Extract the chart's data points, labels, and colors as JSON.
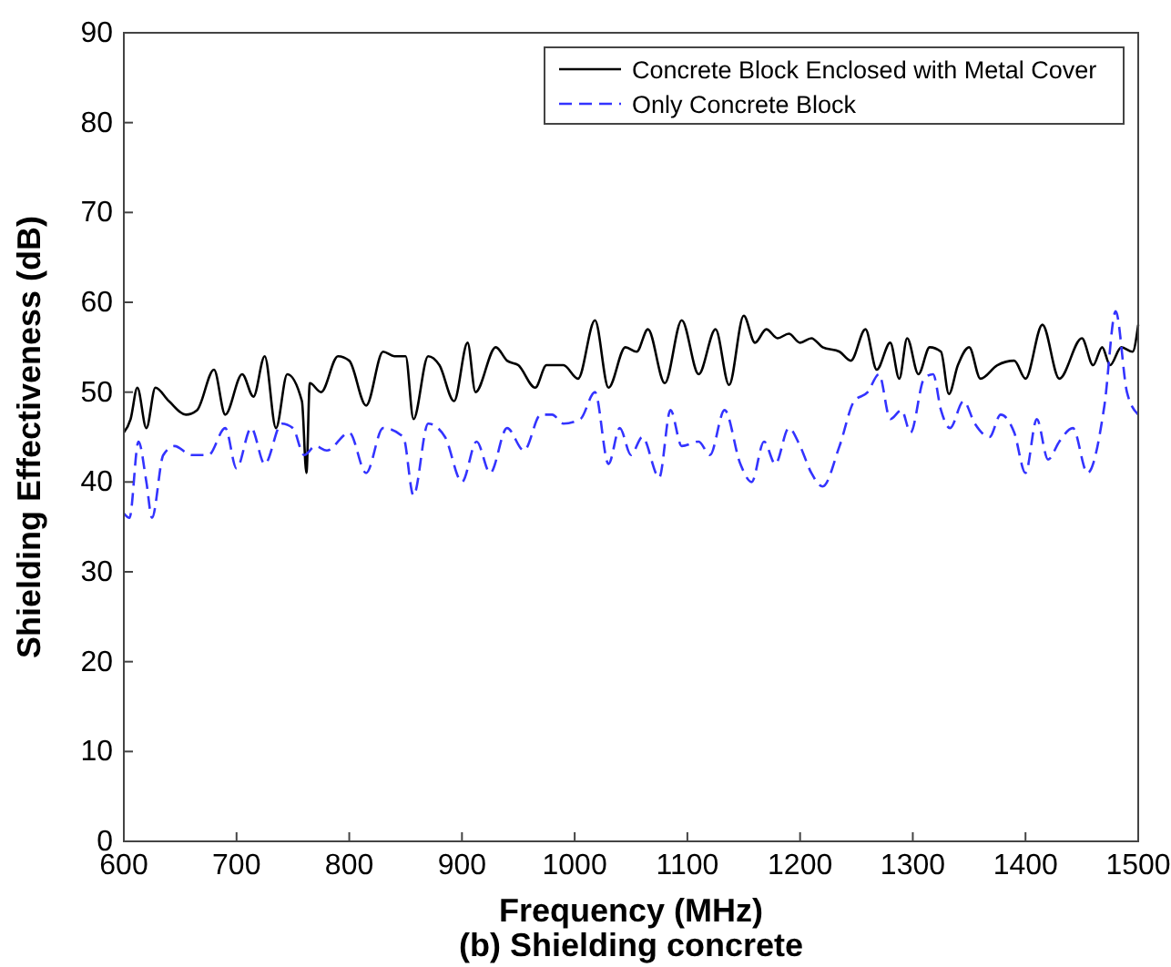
{
  "chart_data": {
    "type": "line",
    "title": "(b) Shielding concrete",
    "xlabel": "Frequency (MHz)",
    "ylabel": "Shielding Effectiveness (dB)",
    "xlim": [
      600,
      1500
    ],
    "xticks": [
      600,
      700,
      800,
      900,
      1000,
      1100,
      1200,
      1300,
      1400,
      1500
    ],
    "ylim": [
      0,
      90
    ],
    "yticks": [
      0,
      10,
      20,
      30,
      40,
      50,
      60,
      70,
      80,
      90
    ],
    "legend": "top right",
    "grid": false,
    "series": [
      {
        "name": "Concrete Block Enclosed with Metal Cover",
        "color": "#000000",
        "line_style": "solid",
        "x": [
          600,
          606,
          612,
          620,
          628,
          640,
          655,
          665,
          680,
          690,
          705,
          715,
          725,
          735,
          745,
          758,
          762,
          765,
          775,
          790,
          800,
          815,
          830,
          840,
          850,
          857,
          870,
          880,
          893,
          905,
          912,
          930,
          940,
          950,
          965,
          975,
          990,
          1003,
          1018,
          1030,
          1045,
          1055,
          1065,
          1080,
          1095,
          1110,
          1125,
          1137,
          1150,
          1160,
          1170,
          1180,
          1190,
          1200,
          1210,
          1220,
          1235,
          1245,
          1258,
          1268,
          1280,
          1288,
          1295,
          1305,
          1315,
          1325,
          1332,
          1340,
          1350,
          1360,
          1375,
          1390,
          1400,
          1415,
          1430,
          1450,
          1460,
          1468,
          1475,
          1485,
          1495,
          1500
        ],
        "values": [
          45.5,
          47,
          50.5,
          46,
          50.5,
          49,
          47.5,
          48,
          52.5,
          47.5,
          52,
          49.5,
          54,
          46,
          52,
          49,
          41,
          51,
          50,
          54,
          53.5,
          48.5,
          54.5,
          54,
          54,
          47,
          54,
          53,
          49,
          55.5,
          50,
          55,
          53.5,
          53,
          50.5,
          53,
          53,
          51.5,
          58,
          50.5,
          55,
          54.5,
          57,
          51,
          58,
          52,
          57,
          50.8,
          58.5,
          55.5,
          57,
          56,
          56.5,
          55.5,
          56,
          55,
          54.5,
          53.5,
          57,
          52.5,
          55.5,
          51.5,
          56,
          52,
          55,
          54.5,
          49.8,
          53,
          55,
          51.5,
          53,
          53.5,
          51.5,
          57.5,
          51.5,
          56,
          53,
          55,
          53,
          55,
          54.5,
          57.5
        ]
      },
      {
        "name": "Only Concrete Block",
        "color": "#3333ff",
        "line_style": "dashed",
        "x": [
          600,
          605,
          613,
          620,
          625,
          635,
          645,
          660,
          675,
          690,
          700,
          713,
          725,
          740,
          750,
          760,
          770,
          780,
          800,
          815,
          830,
          848,
          857,
          870,
          885,
          900,
          913,
          925,
          940,
          955,
          970,
          980,
          990,
          1005,
          1018,
          1030,
          1040,
          1050,
          1060,
          1075,
          1085,
          1095,
          1110,
          1120,
          1133,
          1147,
          1157,
          1168,
          1178,
          1190,
          1200,
          1210,
          1220,
          1235,
          1248,
          1260,
          1270,
          1280,
          1290,
          1298,
          1310,
          1318,
          1325,
          1333,
          1345,
          1355,
          1368,
          1378,
          1390,
          1400,
          1410,
          1420,
          1430,
          1442,
          1455,
          1470,
          1480,
          1490,
          1500
        ],
        "values": [
          36.5,
          36,
          44.5,
          40,
          36,
          43,
          44,
          43,
          43,
          46,
          41.5,
          46,
          42,
          46.5,
          46,
          43,
          44,
          43.5,
          45.5,
          41,
          46,
          45,
          38.5,
          46.5,
          45,
          40,
          44.5,
          41,
          46,
          43.5,
          47.5,
          47.5,
          46.5,
          47,
          50,
          42,
          46,
          43,
          45,
          40.5,
          48,
          44,
          44.5,
          43,
          48,
          42,
          40,
          44.5,
          42,
          46,
          44,
          41,
          39.5,
          44,
          49,
          50,
          52,
          47,
          48,
          45.5,
          51.5,
          52,
          48,
          46,
          49,
          46.5,
          45,
          47.5,
          45.5,
          41,
          47,
          42.5,
          44.5,
          46,
          41,
          48.5,
          59,
          50,
          47.5
        ]
      }
    ]
  }
}
